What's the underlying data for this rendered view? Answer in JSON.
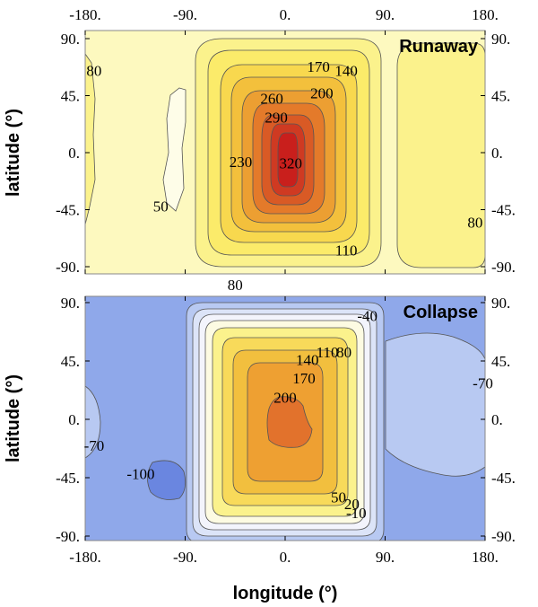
{
  "chart_data": [
    {
      "type": "contour",
      "title": "Runaway",
      "xlabel": "",
      "ylabel": "latitude (°)",
      "xlim": [
        -180,
        180
      ],
      "ylim": [
        -90,
        90
      ],
      "x_ticks": [
        "-180.",
        "-90.",
        "0.",
        "90.",
        "180."
      ],
      "y_ticks": [
        "90.",
        "45.",
        "0.",
        "-45.",
        "-90."
      ],
      "y_ticks_right": [
        "90.",
        "45.",
        "0.",
        "-45.",
        "-90."
      ],
      "levels": [
        50,
        80,
        110,
        140,
        170,
        200,
        230,
        260,
        290,
        320
      ],
      "contour_labels": [
        {
          "text": "80",
          "lon": -172,
          "lat": 65
        },
        {
          "text": "170",
          "lon": 30,
          "lat": 68
        },
        {
          "text": "140",
          "lon": 55,
          "lat": 65
        },
        {
          "text": "200",
          "lon": 33,
          "lat": 47
        },
        {
          "text": "260",
          "lon": -12,
          "lat": 43
        },
        {
          "text": "290",
          "lon": -8,
          "lat": 28
        },
        {
          "text": "230",
          "lon": -40,
          "lat": -7
        },
        {
          "text": "320",
          "lon": 5,
          "lat": -8
        },
        {
          "text": "50",
          "lon": -112,
          "lat": -42
        },
        {
          "text": "80",
          "lon": 171,
          "lat": -55
        },
        {
          "text": "110",
          "lon": 55,
          "lat": -77
        },
        {
          "text": "80",
          "lon": -45,
          "lat": -104
        }
      ]
    },
    {
      "type": "contour",
      "title": "Collapse",
      "xlabel": "longitude (°)",
      "ylabel": "latitude (°)",
      "xlim": [
        -180,
        180
      ],
      "ylim": [
        -90,
        90
      ],
      "x_ticks": [
        "-180.",
        "-90.",
        "0.",
        "90.",
        "180."
      ],
      "y_ticks": [
        "90.",
        "45.",
        "0.",
        "-45.",
        "-90."
      ],
      "y_ticks_right": [
        "90.",
        "45.",
        "0.",
        "-45.",
        "-90."
      ],
      "levels": [
        -100,
        -70,
        -40,
        -10,
        20,
        50,
        80,
        110,
        140,
        170,
        200
      ],
      "contour_labels": [
        {
          "text": "-40",
          "lon": 74,
          "lat": 80
        },
        {
          "text": "110",
          "lon": 38,
          "lat": 52
        },
        {
          "text": "80",
          "lon": 53,
          "lat": 52
        },
        {
          "text": "140",
          "lon": 20,
          "lat": 46
        },
        {
          "text": "170",
          "lon": 17,
          "lat": 32
        },
        {
          "text": "200",
          "lon": 0,
          "lat": 17
        },
        {
          "text": "-70",
          "lon": 178,
          "lat": 28
        },
        {
          "text": "-70",
          "lon": -172,
          "lat": -20
        },
        {
          "text": "-100",
          "lon": -130,
          "lat": -42
        },
        {
          "text": "50",
          "lon": 48,
          "lat": -60
        },
        {
          "text": "20",
          "lon": 60,
          "lat": -65
        },
        {
          "text": "-10",
          "lon": 64,
          "lat": -72
        }
      ]
    }
  ]
}
